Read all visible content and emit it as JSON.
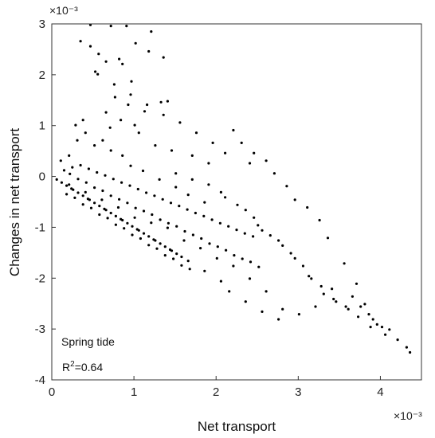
{
  "chart_data": {
    "type": "scatter",
    "xlabel": "Net transport",
    "ylabel": "Changes in  net transport",
    "x_exponent": "×10⁻³",
    "y_exponent": "×10⁻³",
    "xlim": [
      0,
      4.5
    ],
    "ylim": [
      -4,
      3
    ],
    "xticks": [
      "0",
      "1",
      "2",
      "3",
      "4"
    ],
    "yticks": [
      "3",
      "2",
      "1",
      "0",
      "-1",
      "-2",
      "-3",
      "-4"
    ],
    "marker_color": "#000000",
    "grid": false,
    "annotations": {
      "condition": "Spring tide",
      "r2_prefix": "R",
      "r2_sup": "2",
      "r2_value": "=0.64"
    },
    "series": [
      {
        "values": [
          [
            0.47,
            2.98
          ],
          [
            0.72,
            2.96
          ],
          [
            0.91,
            2.96
          ],
          [
            1.21,
            2.85
          ],
          [
            1.18,
            2.46
          ],
          [
            1.36,
            2.34
          ],
          [
            0.35,
            2.66
          ],
          [
            0.47,
            2.56
          ],
          [
            0.57,
            2.41
          ],
          [
            0.82,
            2.31
          ],
          [
            1.02,
            2.62
          ],
          [
            0.53,
            2.06
          ],
          [
            0.86,
            2.21
          ],
          [
            0.97,
            1.87
          ],
          [
            1.41,
            1.48
          ],
          [
            1.33,
            1.46
          ],
          [
            1.13,
            1.28
          ],
          [
            0.77,
            1.56
          ],
          [
            0.93,
            1.41
          ],
          [
            0.66,
            1.26
          ],
          [
            0.84,
            1.11
          ],
          [
            1.01,
            1.01
          ],
          [
            1.06,
            0.86
          ],
          [
            0.71,
            0.96
          ],
          [
            1.26,
            0.61
          ],
          [
            1.46,
            0.51
          ],
          [
            1.71,
            0.41
          ],
          [
            1.91,
            0.26
          ],
          [
            2.21,
            0.91
          ],
          [
            2.31,
            0.66
          ],
          [
            2.46,
            0.46
          ],
          [
            2.61,
            0.31
          ],
          [
            2.71,
            0.06
          ],
          [
            2.86,
            -0.19
          ],
          [
            2.96,
            -0.46
          ],
          [
            3.11,
            -0.61
          ],
          [
            3.26,
            -0.86
          ],
          [
            3.36,
            -1.21
          ],
          [
            3.56,
            -1.71
          ],
          [
            3.71,
            -2.11
          ],
          [
            3.81,
            -2.51
          ],
          [
            3.96,
            -2.91
          ],
          [
            4.06,
            -3.11
          ],
          [
            4.21,
            -3.21
          ],
          [
            4.32,
            -3.36
          ],
          [
            4.36,
            -3.46
          ],
          [
            4.02,
            -2.96
          ],
          [
            3.86,
            -2.71
          ],
          [
            3.66,
            -2.36
          ],
          [
            3.41,
            -2.21
          ],
          [
            3.21,
            -2.56
          ],
          [
            3.01,
            -2.71
          ],
          [
            2.81,
            -2.61
          ],
          [
            2.61,
            -2.26
          ],
          [
            2.41,
            -2.01
          ],
          [
            2.21,
            -1.76
          ],
          [
            2.01,
            -1.61
          ],
          [
            1.81,
            -1.41
          ],
          [
            1.61,
            -1.26
          ],
          [
            1.41,
            -1.01
          ],
          [
            1.21,
            -0.91
          ],
          [
            1.01,
            -0.81
          ],
          [
            0.81,
            -0.61
          ],
          [
            0.61,
            -0.46
          ],
          [
            0.41,
            -0.31
          ],
          [
            0.21,
            -0.16
          ],
          [
            0.11,
            0.31
          ],
          [
            0.21,
            0.41
          ],
          [
            0.31,
            0.71
          ],
          [
            0.41,
            0.86
          ],
          [
            0.29,
            1.01
          ],
          [
            0.38,
            1.11
          ],
          [
            0.52,
            0.61
          ],
          [
            0.62,
            0.71
          ],
          [
            0.72,
            0.51
          ],
          [
            0.86,
            0.41
          ],
          [
            0.96,
            0.21
          ],
          [
            1.11,
            0.11
          ],
          [
            1.31,
            -0.06
          ],
          [
            1.51,
            -0.21
          ],
          [
            1.66,
            -0.36
          ],
          [
            1.86,
            -0.51
          ],
          [
            2.06,
            -0.31
          ],
          [
            2.26,
            -0.56
          ],
          [
            2.46,
            -0.81
          ],
          [
            2.56,
            -1.06
          ],
          [
            2.76,
            -1.26
          ],
          [
            2.91,
            -1.51
          ],
          [
            3.06,
            -1.76
          ],
          [
            3.16,
            -2.01
          ],
          [
            3.31,
            -2.31
          ],
          [
            3.46,
            -2.46
          ],
          [
            3.61,
            -2.61
          ],
          [
            3.76,
            -2.56
          ],
          [
            3.91,
            -2.81
          ],
          [
            4.11,
            -3.01
          ],
          [
            2.41,
            0.26
          ],
          [
            2.11,
            0.46
          ],
          [
            1.96,
            0.66
          ],
          [
            1.76,
            0.86
          ],
          [
            1.56,
            1.06
          ],
          [
            1.36,
            1.21
          ],
          [
            1.16,
            1.41
          ],
          [
            0.96,
            1.61
          ],
          [
            0.76,
            1.81
          ],
          [
            0.56,
            2.01
          ],
          [
            0.66,
            2.26
          ],
          [
            1.51,
            0.06
          ],
          [
            1.71,
            -0.06
          ],
          [
            1.91,
            -0.16
          ],
          [
            2.11,
            -0.41
          ],
          [
            2.36,
            -0.66
          ],
          [
            2.51,
            -0.96
          ],
          [
            2.66,
            -1.16
          ],
          [
            2.81,
            -1.36
          ],
          [
            2.96,
            -1.61
          ],
          [
            3.13,
            -1.96
          ],
          [
            3.28,
            -2.16
          ],
          [
            3.43,
            -2.41
          ],
          [
            3.58,
            -2.56
          ],
          [
            3.73,
            -2.76
          ],
          [
            3.88,
            -2.96
          ],
          [
            2.16,
            -2.26
          ],
          [
            2.36,
            -2.46
          ],
          [
            2.56,
            -2.66
          ],
          [
            2.76,
            -2.81
          ],
          [
            2.06,
            -2.06
          ],
          [
            1.86,
            -1.86
          ],
          [
            1.66,
            -1.66
          ],
          [
            1.46,
            -1.46
          ],
          [
            1.26,
            -1.26
          ],
          [
            1.06,
            -1.06
          ],
          [
            0.86,
            -0.86
          ],
          [
            0.66,
            -0.66
          ],
          [
            0.46,
            -0.46
          ],
          [
            0.26,
            -0.26
          ],
          [
            0.06,
            -0.06
          ],
          [
            0.12,
            -0.12
          ],
          [
            0.18,
            -0.18
          ],
          [
            0.24,
            -0.24
          ],
          [
            0.32,
            -0.32
          ],
          [
            0.38,
            -0.38
          ],
          [
            0.44,
            -0.44
          ],
          [
            0.52,
            -0.52
          ],
          [
            0.58,
            -0.58
          ],
          [
            0.64,
            -0.64
          ],
          [
            0.72,
            -0.72
          ],
          [
            0.78,
            -0.78
          ],
          [
            0.84,
            -0.84
          ],
          [
            0.92,
            -0.92
          ],
          [
            0.98,
            -0.98
          ],
          [
            1.04,
            -1.04
          ],
          [
            1.12,
            -1.12
          ],
          [
            1.18,
            -1.18
          ],
          [
            1.24,
            -1.24
          ],
          [
            1.32,
            -1.32
          ],
          [
            1.38,
            -1.38
          ],
          [
            1.44,
            -1.44
          ],
          [
            1.52,
            -1.52
          ],
          [
            1.58,
            -1.58
          ],
          [
            0.15,
            0.12
          ],
          [
            0.25,
            0.18
          ],
          [
            0.35,
            0.22
          ],
          [
            0.45,
            0.15
          ],
          [
            0.55,
            0.08
          ],
          [
            0.65,
            0.02
          ],
          [
            0.75,
            -0.05
          ],
          [
            0.85,
            -0.12
          ],
          [
            0.95,
            -0.18
          ],
          [
            1.05,
            -0.25
          ],
          [
            1.15,
            -0.32
          ],
          [
            1.25,
            -0.38
          ],
          [
            1.35,
            -0.45
          ],
          [
            1.45,
            -0.52
          ],
          [
            1.55,
            -0.58
          ],
          [
            1.65,
            -0.65
          ],
          [
            1.75,
            -0.72
          ],
          [
            1.85,
            -0.78
          ],
          [
            1.95,
            -0.85
          ],
          [
            2.05,
            -0.92
          ],
          [
            2.15,
            -0.98
          ],
          [
            2.25,
            -1.05
          ],
          [
            2.35,
            -1.12
          ],
          [
            2.45,
            -1.18
          ],
          [
            0.18,
            -0.35
          ],
          [
            0.28,
            -0.42
          ],
          [
            0.38,
            -0.55
          ],
          [
            0.48,
            -0.62
          ],
          [
            0.58,
            -0.75
          ],
          [
            0.68,
            -0.82
          ],
          [
            0.78,
            -0.95
          ],
          [
            0.88,
            -1.02
          ],
          [
            0.98,
            -1.15
          ],
          [
            1.08,
            -1.22
          ],
          [
            1.18,
            -1.35
          ],
          [
            1.28,
            -1.42
          ],
          [
            1.38,
            -1.55
          ],
          [
            1.48,
            -1.62
          ],
          [
            1.58,
            -1.75
          ],
          [
            1.68,
            -1.82
          ],
          [
            0.22,
            0.05
          ],
          [
            0.32,
            -0.05
          ],
          [
            0.42,
            -0.12
          ],
          [
            0.52,
            -0.22
          ],
          [
            0.62,
            -0.28
          ],
          [
            0.72,
            -0.38
          ],
          [
            0.82,
            -0.45
          ],
          [
            0.92,
            -0.52
          ],
          [
            1.02,
            -0.62
          ],
          [
            1.12,
            -0.68
          ],
          [
            1.22,
            -0.75
          ],
          [
            1.32,
            -0.85
          ],
          [
            1.42,
            -0.92
          ],
          [
            1.52,
            -0.98
          ],
          [
            1.62,
            -1.08
          ],
          [
            1.72,
            -1.15
          ],
          [
            1.82,
            -1.22
          ],
          [
            1.92,
            -1.32
          ],
          [
            2.02,
            -1.38
          ],
          [
            2.12,
            -1.45
          ],
          [
            2.22,
            -1.55
          ],
          [
            2.32,
            -1.62
          ],
          [
            2.42,
            -1.68
          ],
          [
            2.52,
            -1.78
          ]
        ]
      }
    ]
  }
}
